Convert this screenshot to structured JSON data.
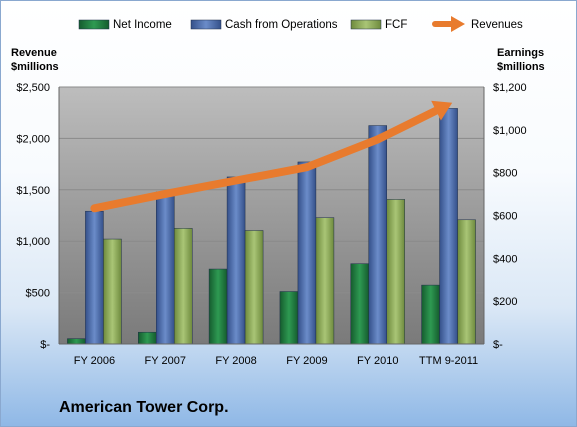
{
  "chart_data": {
    "type": "bar",
    "title": "American Tower Corp.",
    "categories": [
      "FY 2006",
      "FY 2007",
      "FY 2008",
      "FY 2009",
      "FY 2010",
      "TTM 9-2011"
    ],
    "series": [
      {
        "name": "Net Income",
        "axis": "right",
        "chart": "bar",
        "color": "#1f7a3f",
        "values": [
          25,
          55,
          350,
          245,
          375,
          275
        ]
      },
      {
        "name": "Cash from Operations",
        "axis": "right",
        "chart": "bar",
        "color": "#4d6fb0",
        "values": [
          620,
          710,
          780,
          850,
          1020,
          1100
        ]
      },
      {
        "name": "FCF",
        "axis": "right",
        "chart": "bar",
        "color": "#8fae5a",
        "values": [
          490,
          540,
          530,
          590,
          675,
          580
        ]
      },
      {
        "name": "Revenues",
        "axis": "left",
        "chart": "line-arrow",
        "color": "#e87b2e",
        "values": [
          1320,
          1460,
          1590,
          1720,
          1990,
          2330
        ]
      }
    ],
    "ylabel_left": "Revenue\n$millions",
    "ylabel_right": "Earnings\n$millions",
    "ylim_left": [
      0,
      2500
    ],
    "ylim_right": [
      0,
      1200
    ],
    "left_ticks": [
      "$-",
      "$500",
      "$1,000",
      "$1,500",
      "$2,000",
      "$2,500"
    ],
    "right_ticks": [
      "$-",
      "$200",
      "$400",
      "$600",
      "$800",
      "$1,000",
      "$1,200"
    ],
    "grid": true,
    "legend_position": "top"
  }
}
